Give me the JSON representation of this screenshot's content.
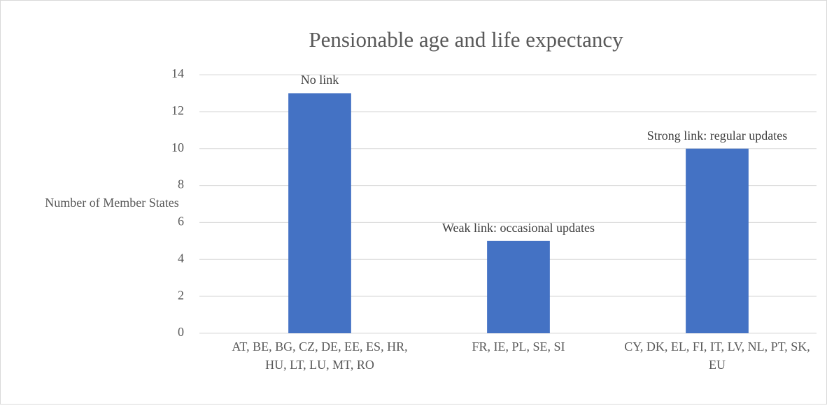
{
  "chart_data": {
    "type": "bar",
    "title": "Pensionable age and life expectancy",
    "y_label": "Number of Member States",
    "categories": [
      "AT, BE, BG, CZ, DE, EE, ES, HR, HU, LT, LU, MT, RO",
      "FR, IE, PL, SE, SI",
      "CY, DK, EL, FI, IT, LV, NL, PT, SK, EU"
    ],
    "values": [
      13,
      5,
      10
    ],
    "annotations": [
      "No link",
      "Weak link: occasional updates",
      "Strong link: regular updates"
    ],
    "color": "#4472c4",
    "ylim": [
      0,
      14
    ],
    "yticks": [
      0,
      2,
      4,
      6,
      8,
      10,
      12,
      14
    ],
    "grid": true
  }
}
